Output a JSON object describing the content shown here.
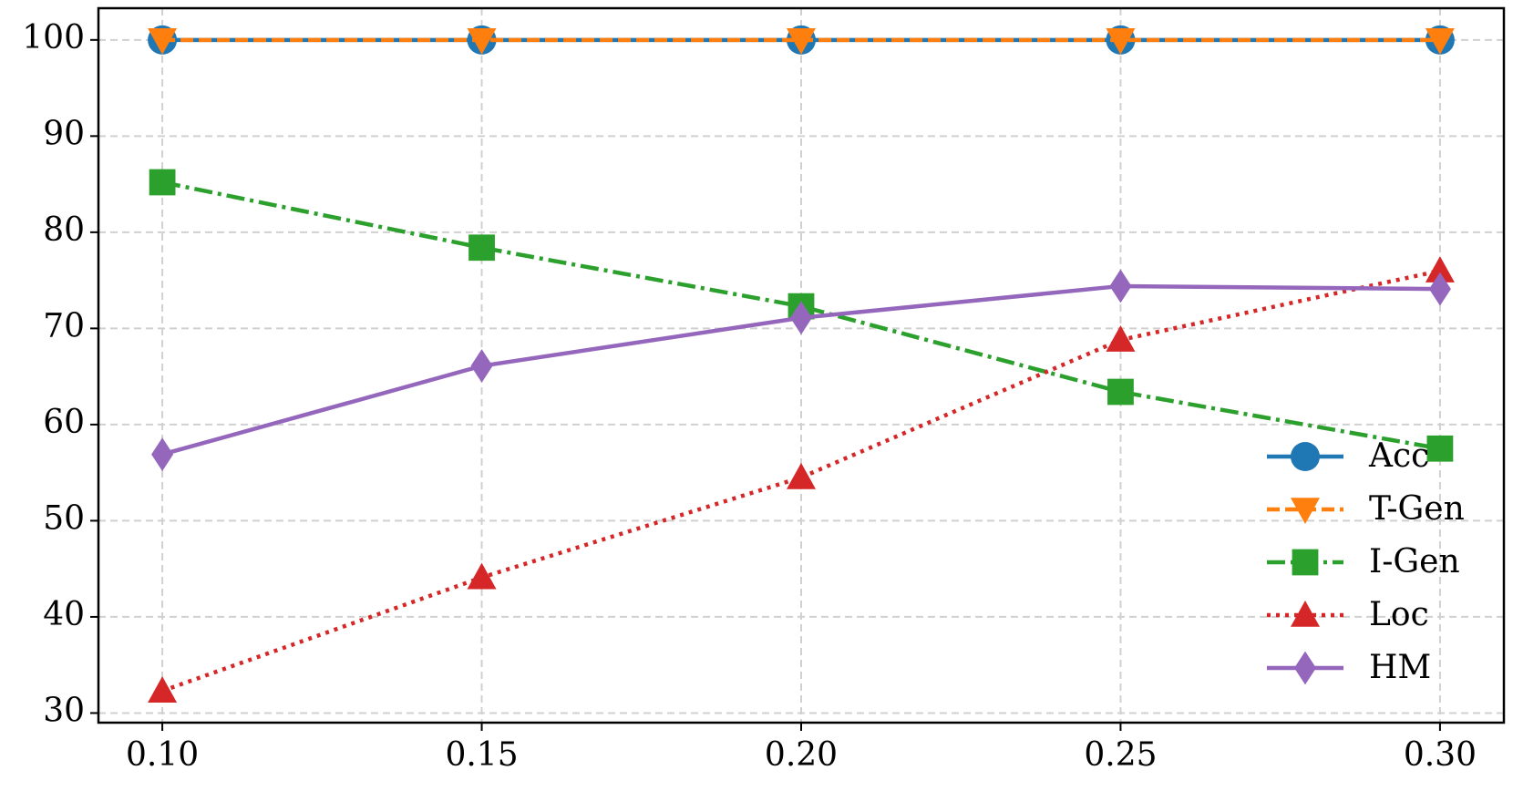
{
  "chart_data": {
    "type": "line",
    "x": [
      0.1,
      0.15,
      0.2,
      0.25,
      0.3
    ],
    "xlim": [
      0.09,
      0.31
    ],
    "xticks": [
      {
        "value": 0.1,
        "label": "0.10"
      },
      {
        "value": 0.15,
        "label": "0.15"
      },
      {
        "value": 0.2,
        "label": "0.20"
      },
      {
        "value": 0.25,
        "label": "0.25"
      },
      {
        "value": 0.3,
        "label": "0.30"
      }
    ],
    "ylim": [
      29,
      103.3
    ],
    "yticks": [
      30,
      40,
      50,
      60,
      70,
      80,
      90,
      100
    ],
    "grid": true,
    "legend": "lower right",
    "series": [
      {
        "name": "Acc",
        "color": "#1f77b4",
        "marker": "circle",
        "linestyle": "solid",
        "values": [
          100,
          100,
          100,
          100,
          100
        ]
      },
      {
        "name": "T-Gen",
        "color": "#ff7f0e",
        "marker": "triangle-down",
        "linestyle": "dashed",
        "values": [
          100,
          100,
          100,
          100,
          100
        ]
      },
      {
        "name": "I-Gen",
        "color": "#2ca02c",
        "marker": "square",
        "linestyle": "dashdot",
        "values": [
          85.2,
          78.4,
          72.3,
          63.4,
          57.5
        ]
      },
      {
        "name": "Loc",
        "color": "#d62728",
        "marker": "triangle-up",
        "linestyle": "dotted",
        "values": [
          32.3,
          44.1,
          54.5,
          68.8,
          76.0
        ]
      },
      {
        "name": "HM",
        "color": "#9467bd",
        "marker": "diamond",
        "linestyle": "solid",
        "values": [
          56.9,
          66.1,
          71.1,
          74.4,
          74.1
        ]
      }
    ]
  }
}
